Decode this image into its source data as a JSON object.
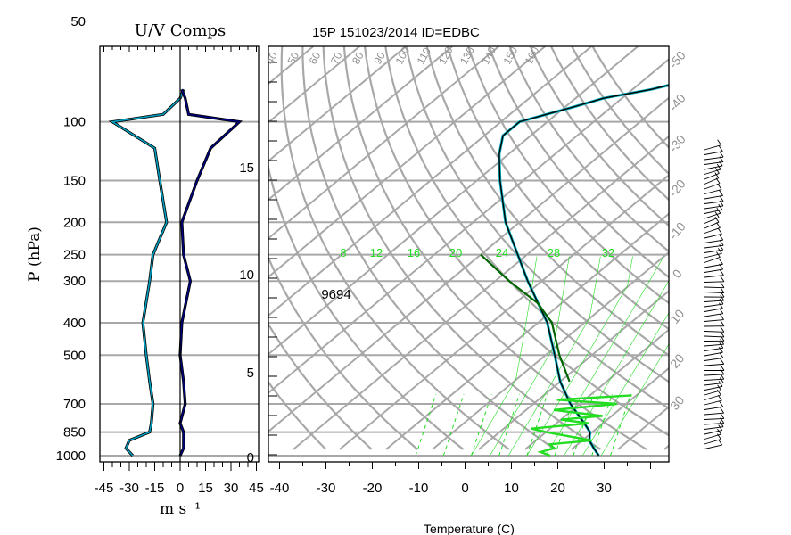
{
  "title": "15P 151023/2014 ID=EDBC",
  "station_label": "9694",
  "uv_panel": {
    "title": "U/V Comps",
    "xlabel": "m s⁻¹",
    "xticks": [
      "-45",
      "-30",
      "-15",
      "0",
      "15",
      "30",
      "45"
    ]
  },
  "skewt": {
    "xlabel": "Temperature (C)",
    "xticks": [
      "-40",
      "-30",
      "-20",
      "-10",
      "0",
      "10",
      "20",
      "30"
    ]
  },
  "pressure_axis": {
    "label": "P (hPa)",
    "ticks": [
      "50",
      "100",
      "150",
      "200",
      "250",
      "300",
      "400",
      "500",
      "700",
      "850",
      "1000"
    ]
  },
  "height_axis": {
    "ticks": [
      "15",
      "10",
      "5",
      "0"
    ]
  },
  "theta_labels": [
    "40",
    "50",
    "60",
    "70",
    "80",
    "90",
    "100",
    "110",
    "120",
    "130",
    "140",
    "150",
    "160"
  ],
  "temp_labels": [
    "-50",
    "-40",
    "-30",
    "-20",
    "-10",
    "0",
    "10",
    "20",
    "30"
  ],
  "mixing_labels": [
    "8",
    "12",
    "16",
    "20",
    "24",
    "28",
    "32"
  ],
  "colors": {
    "temperature": "#000000",
    "temperature2": "#00b0c0",
    "parcel": "#006400",
    "dewpoint": "#22dd22",
    "moist_adiabat": "#22dd22",
    "grid": "#a8a8a8",
    "u_component": "#00a0c0",
    "v_component": "#000080"
  },
  "chart_data": [
    {
      "type": "line",
      "title": "U/V Comps",
      "xlabel": "m s⁻¹",
      "ylabel": "P (hPa)",
      "xlim": [
        -50,
        50
      ],
      "ylim": [
        1000,
        50
      ],
      "yscale": "log",
      "series": [
        {
          "name": "U",
          "p": [
            1000,
            950,
            900,
            850,
            800,
            700,
            600,
            500,
            400,
            300,
            250,
            200,
            150,
            120,
            100,
            95,
            85,
            80
          ],
          "values": [
            -28,
            -32,
            -30,
            -18,
            -17,
            -16,
            -18,
            -20,
            -22,
            -18,
            -16,
            -8,
            -12,
            -15,
            -40,
            -10,
            0,
            2
          ]
        },
        {
          "name": "V",
          "p": [
            1000,
            950,
            900,
            850,
            800,
            700,
            600,
            500,
            400,
            300,
            250,
            200,
            150,
            120,
            100,
            95,
            85,
            80
          ],
          "values": [
            0,
            2,
            2,
            2,
            0,
            3,
            2,
            0,
            1,
            6,
            2,
            1,
            10,
            18,
            35,
            5,
            3,
            1
          ]
        }
      ]
    },
    {
      "type": "line",
      "title": "15P 151023/2014 ID=EDBC",
      "xlabel": "Temperature (C)",
      "ylabel": "P (hPa)",
      "xlim": [
        -42,
        42
      ],
      "ylim": [
        1000,
        50
      ],
      "yscale": "log",
      "skew": true,
      "series": [
        {
          "name": "T",
          "p": [
            1000,
            950,
            900,
            850,
            800,
            700,
            600,
            500,
            400,
            300,
            250,
            200,
            150,
            125,
            110,
            100,
            90,
            85,
            80,
            75
          ],
          "values": [
            27.5,
            24.5,
            21.5,
            19.5,
            16,
            8,
            0,
            -8,
            -18,
            -33,
            -42,
            -53,
            -65,
            -72,
            -76,
            -76,
            -68,
            -64,
            -56,
            -50
          ]
        },
        {
          "name": "parcel",
          "p": [
            600,
            500,
            400,
            350,
            300,
            250
          ],
          "values": [
            2,
            -7,
            -17,
            -25,
            -37,
            -50
          ]
        },
        {
          "name": "Td",
          "p": [
            1000,
            975,
            950,
            925,
            900,
            850,
            830,
            800,
            780,
            760,
            730,
            700,
            680,
            660
          ],
          "values": [
            17,
            14,
            16,
            14,
            22,
            10,
            6,
            17,
            10,
            18,
            6,
            18,
            4,
            19
          ]
        }
      ]
    }
  ]
}
